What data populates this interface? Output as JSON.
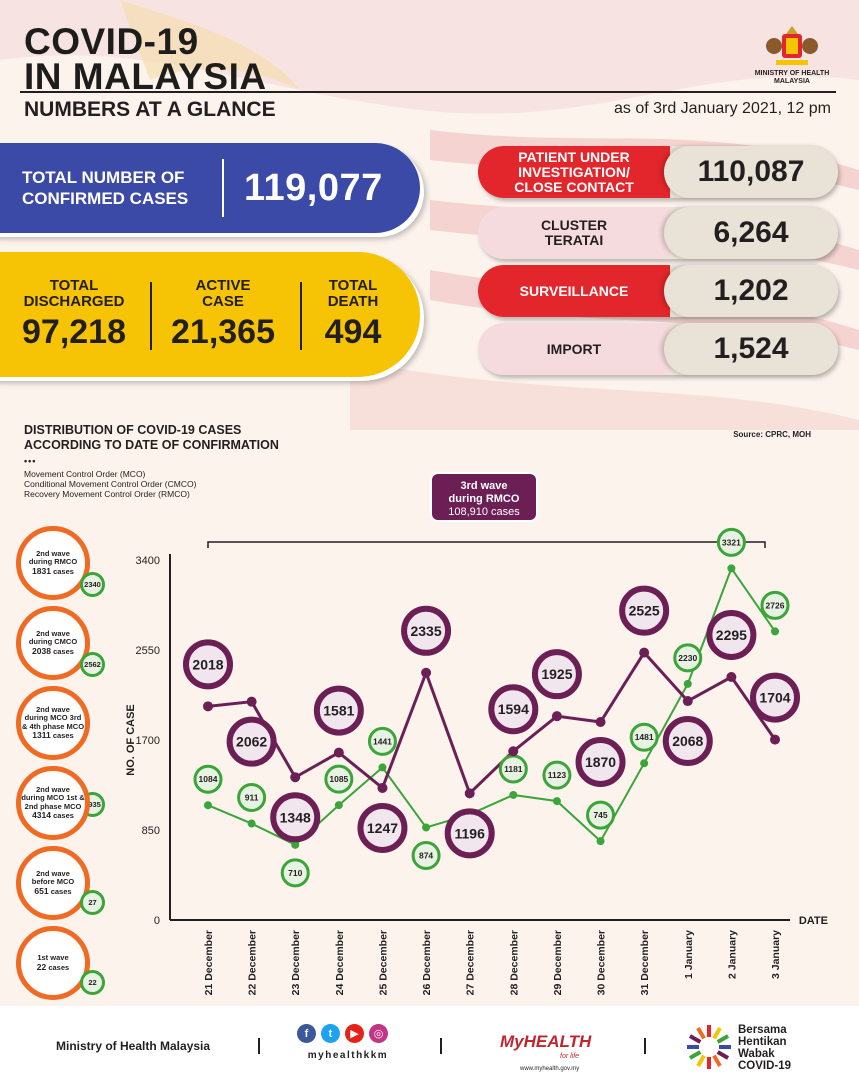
{
  "header": {
    "title_line1": "COVID-19",
    "title_line2": "IN MALAYSIA",
    "subtitle": "NUMBERS AT A GLANCE",
    "as_of": "as of 3rd January 2021, 12 pm",
    "ministry_line1": "MINISTRY OF HEALTH",
    "ministry_line2": "MALAYSIA"
  },
  "confirmed": {
    "label_line1": "TOTAL NUMBER OF",
    "label_line2": "CONFIRMED CASES",
    "value": "119,077"
  },
  "summary": [
    {
      "label_line1": "TOTAL",
      "label_line2": "DISCHARGED",
      "value": "97,218"
    },
    {
      "label_line1": "ACTIVE",
      "label_line2": "CASE",
      "value": "21,365"
    },
    {
      "label_line1": "TOTAL",
      "label_line2": "DEATH",
      "value": "494"
    }
  ],
  "categories": [
    {
      "label": "PATIENT UNDER INVESTIGATION/ CLOSE CONTACT",
      "value": "110,087",
      "color": "#e2262b"
    },
    {
      "label": "CLUSTER TERATAI",
      "value": "6,264",
      "color": "#f6dbde"
    },
    {
      "label": "SURVEILLANCE",
      "value": "1,202",
      "color": "#e2262b"
    },
    {
      "label": "IMPORT",
      "value": "1,524",
      "color": "#f6dbde"
    }
  ],
  "distribution": {
    "title_line1": "DISTRIBUTION OF COVID-19 CASES",
    "title_line2": "ACCORDING TO DATE OF CONFIRMATION",
    "source": "Source: CPRC, MOH",
    "dots": "•••",
    "legend": [
      "Movement Control Order (MCO)",
      "Conditional Movement Control Order (CMCO)",
      "Recovery Movement Control Order (RMCO)"
    ],
    "third_wave": {
      "line1": "3rd wave",
      "line2": "during RMCO",
      "cases": "108,910 cases"
    }
  },
  "waves": [
    {
      "line1": "2nd wave",
      "line2": "during RMCO",
      "cases": "1831",
      "suffix": "cases",
      "bubble": "2340"
    },
    {
      "line1": "2nd wave",
      "line2": "during CMCO",
      "cases": "2038",
      "suffix": "cases",
      "bubble": "2562"
    },
    {
      "line1": "2nd wave",
      "line2": "during MCO 3rd",
      "line3": "& 4th phase MCO",
      "cases": "1311",
      "suffix": "cases",
      "bubble": "1935"
    },
    {
      "line1": "2nd wave",
      "line2": "during MCO 1st &",
      "line3": "2nd phase MCO",
      "cases": "4314",
      "suffix": "cases",
      "bubble": "2429"
    },
    {
      "line1": "2nd wave",
      "line2": "before MCO",
      "cases": "651",
      "suffix": "cases",
      "bubble": "27"
    },
    {
      "line1": "1st wave",
      "cases": "22",
      "suffix": "cases",
      "bubble": "22"
    }
  ],
  "chart_data": {
    "type": "line",
    "categories": [
      "21 December",
      "22 December",
      "23 December",
      "24 December",
      "25 December",
      "26 December",
      "27 December",
      "28 December",
      "29 December",
      "30 December",
      "31 December",
      "1 January",
      "2 January",
      "3 January"
    ],
    "series": [
      {
        "values": [
          2018,
          2062,
          1348,
          1581,
          1247,
          2335,
          1196,
          1594,
          1925,
          1870,
          2525,
          2068,
          2295,
          1704
        ],
        "color": "#6b1f55"
      },
      {
        "values": [
          1084,
          911,
          710,
          1085,
          1441,
          874,
          997,
          1181,
          1123,
          745,
          1481,
          2230,
          3321,
          2726
        ],
        "color": "#3ba53a"
      }
    ],
    "ylabel": "NO. OF CASE",
    "xlabel": "DATE",
    "yticks": [
      0,
      850,
      1700,
      2550,
      3400
    ],
    "ylim": [
      0,
      3400
    ]
  },
  "footer": {
    "ministry": "Ministry of Health Malaysia",
    "social_handle": "myhealthkkm",
    "myhealth": "MyHEALTH",
    "myhealth_tag": "for life",
    "myhealth_url": "www.myhealth.gov.my",
    "campaign_line1": "Bersama",
    "campaign_line2": "Hentikan",
    "campaign_line3": "Wabak",
    "campaign_line4": "COVID-19"
  }
}
